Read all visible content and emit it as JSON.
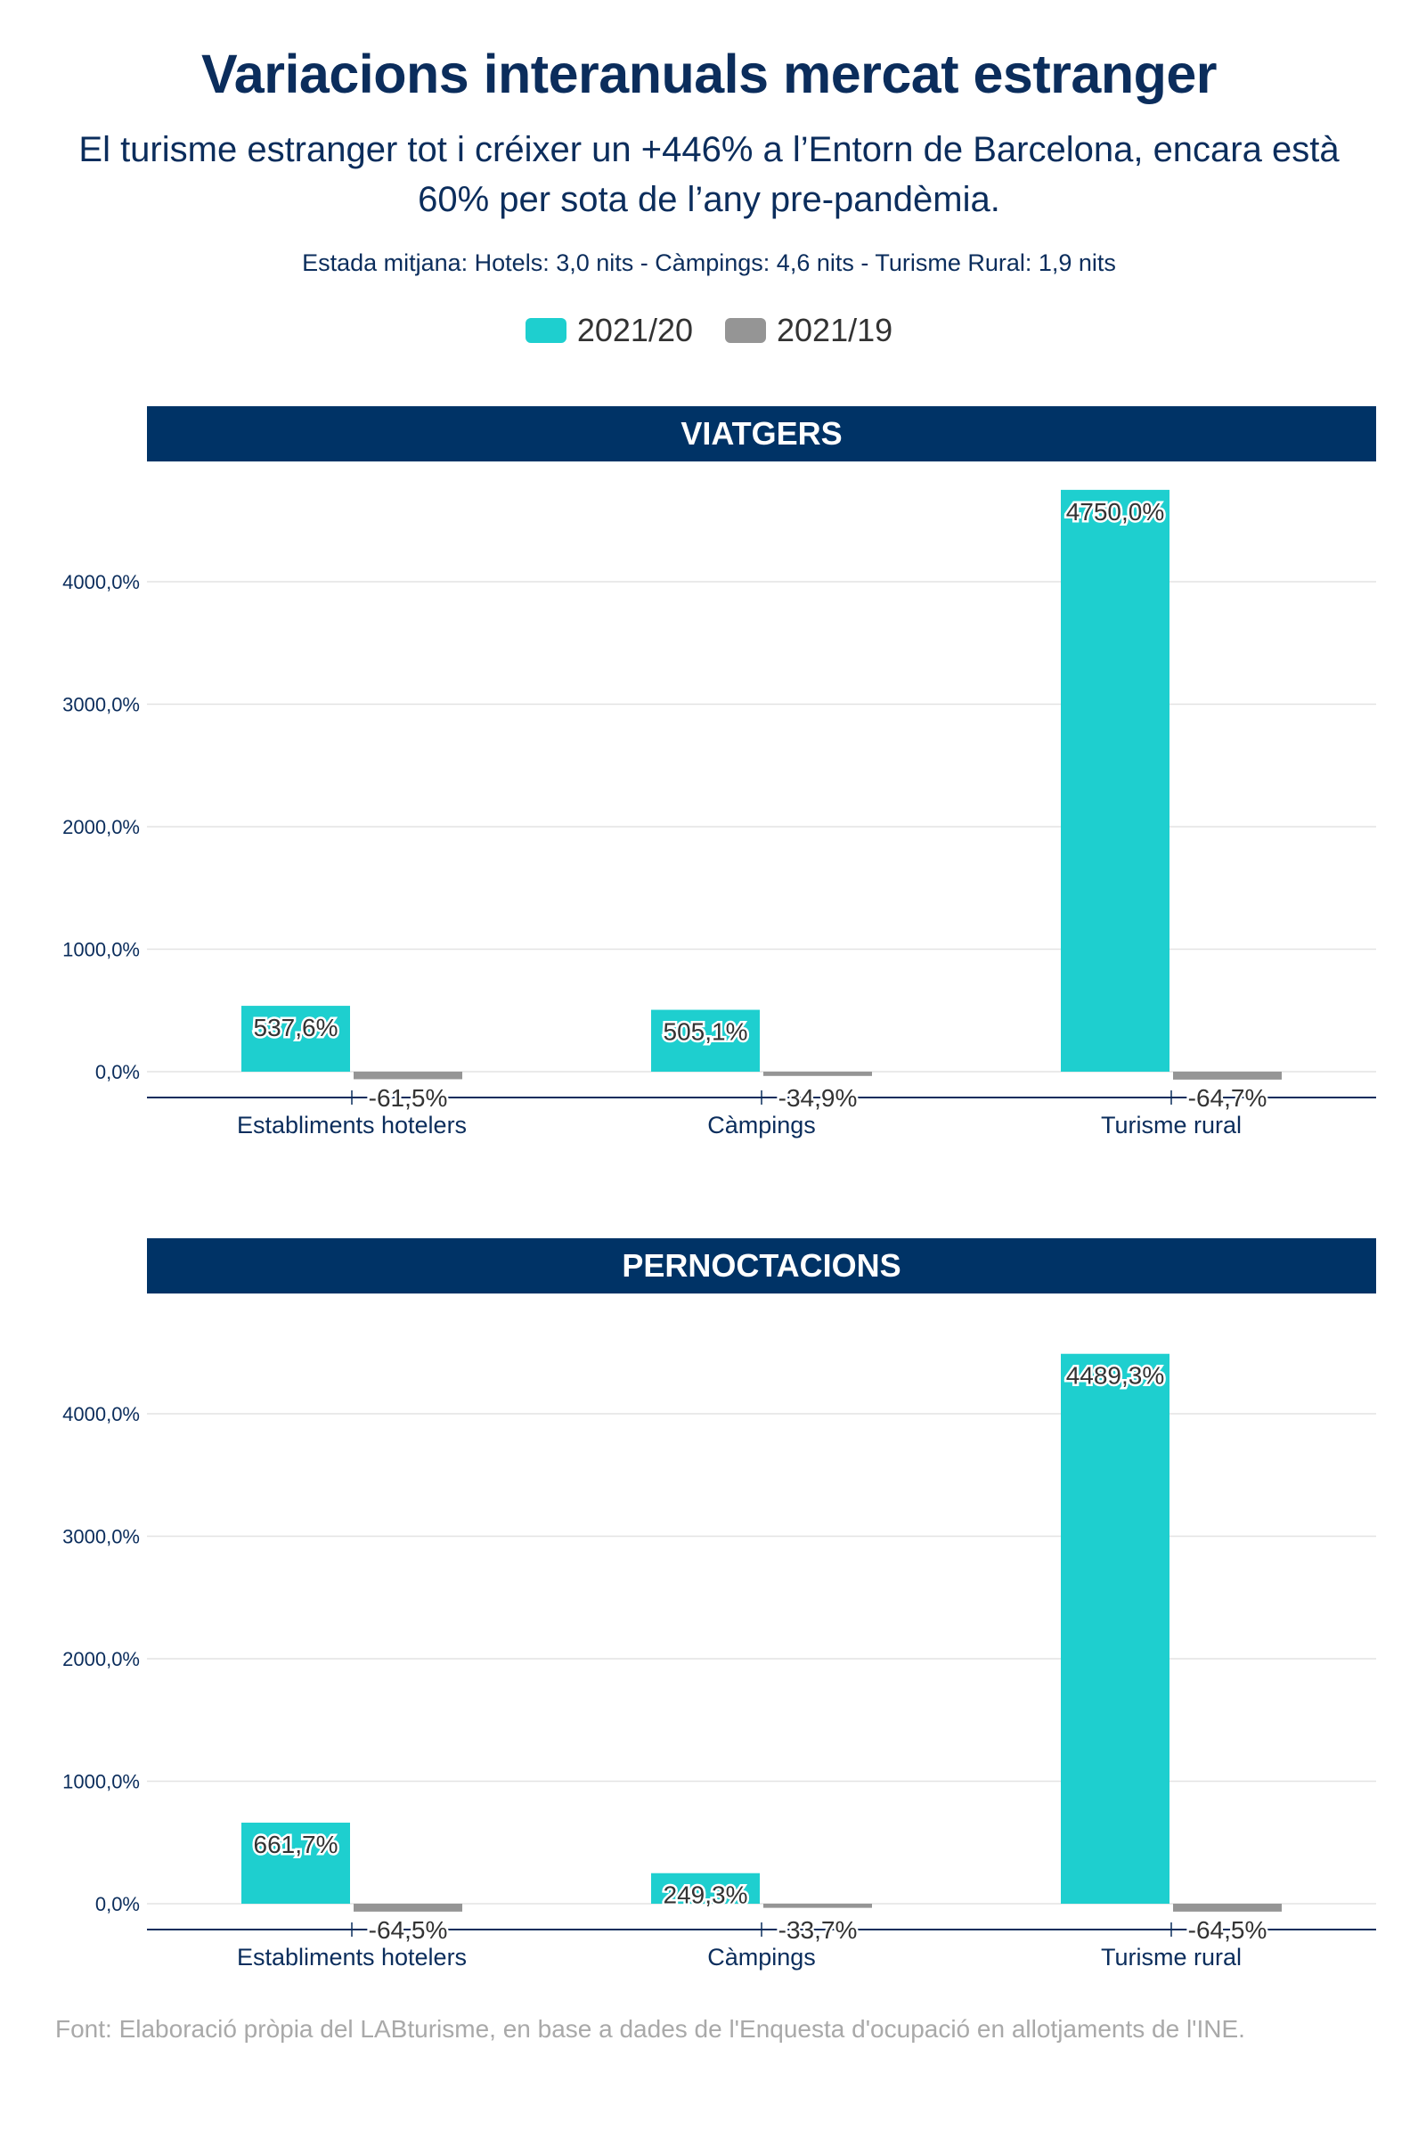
{
  "header": {
    "title": "Variacions interanuals mercat estranger",
    "subtitle": "El turisme estranger tot i créixer un +446% a l’Entorn de Barcelona, encara està 60% per sota de l’any pre-pandèmia.",
    "note": "Estada mitjana: Hotels: 3,0 nits - Càmpings: 4,6 nits - Turisme Rural: 1,9 nits"
  },
  "legend": [
    {
      "name": "2021/20",
      "color": "#1ecfcf"
    },
    {
      "name": "2021/19",
      "color": "#959595"
    }
  ],
  "chart_data": [
    {
      "type": "bar",
      "title": "VIATGERS",
      "categories": [
        "Establiments hotelers",
        "Càmpings",
        "Turisme rural"
      ],
      "series": [
        {
          "name": "2021/20",
          "values": [
            537.6,
            505.1,
            4750.0
          ],
          "labels": [
            "537,6%",
            "505,1%",
            "4750,0%"
          ]
        },
        {
          "name": "2021/19",
          "values": [
            -61.5,
            -34.9,
            -64.7
          ],
          "labels": [
            "-61,5%",
            "-34,9%",
            "-64,7%"
          ]
        }
      ],
      "yticks": [
        "0,0%",
        "1000,0%",
        "2000,0%",
        "3000,0%",
        "4000,0%"
      ],
      "ytick_values": [
        0,
        1000,
        2000,
        3000,
        4000
      ],
      "ylim": [
        -200,
        4900
      ],
      "grid": true,
      "legend_position": "top-center"
    },
    {
      "type": "bar",
      "title": "PERNOCTACIONS",
      "categories": [
        "Establiments hotelers",
        "Càmpings",
        "Turisme rural"
      ],
      "series": [
        {
          "name": "2021/20",
          "values": [
            661.7,
            249.3,
            4489.3
          ],
          "labels": [
            "661,7%",
            "249,3%",
            "4489,3%"
          ]
        },
        {
          "name": "2021/19",
          "values": [
            -64.5,
            -33.7,
            -64.5
          ],
          "labels": [
            "-64,5%",
            "-33,7%",
            "-64,5%"
          ]
        }
      ],
      "yticks": [
        "0,0%",
        "1000,0%",
        "2000,0%",
        "3000,0%",
        "4000,0%"
      ],
      "ytick_values": [
        0,
        1000,
        2000,
        3000,
        4000
      ],
      "ylim": [
        -200,
        4900
      ],
      "grid": true,
      "legend_position": "top-center"
    }
  ],
  "source": "Font: Elaboració pròpia del LABturisme, en base a dades de l'Enquesta d'ocupació en allotjaments de l'INE."
}
